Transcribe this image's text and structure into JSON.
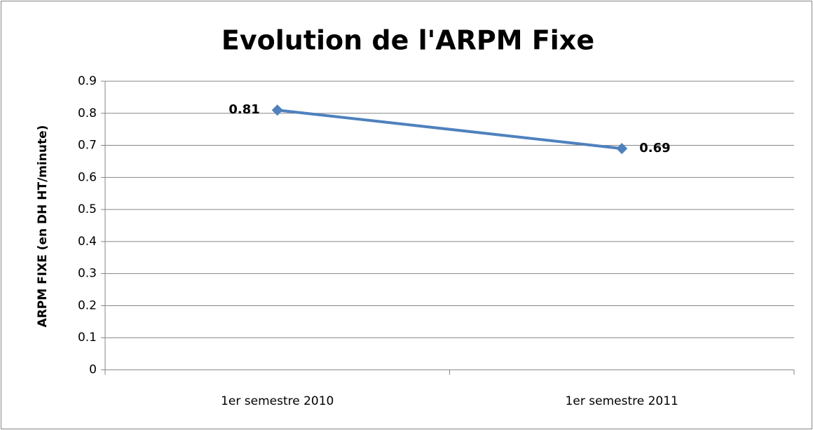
{
  "chart_data": {
    "type": "line",
    "title": "Evolution de l'ARPM Fixe",
    "y_label": "ARPM FIXE (en DH HT/minute)",
    "categories": [
      "1er semestre 2010",
      "1er semestre 2011"
    ],
    "series": [
      {
        "name": "ARPM Fixe",
        "color": "#4f81bd",
        "values": [
          0.81,
          0.69
        ]
      }
    ],
    "ylim": [
      0,
      0.9
    ],
    "yticks": [
      0,
      0.1,
      0.2,
      0.3,
      0.4,
      0.5,
      0.6,
      0.7,
      0.8,
      0.9
    ],
    "grid": true
  }
}
